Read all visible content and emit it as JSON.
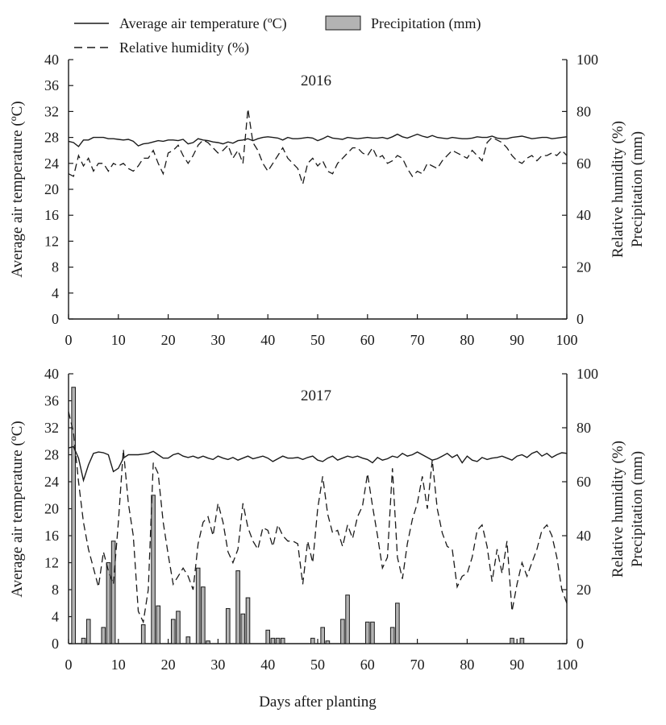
{
  "legend": {
    "temp_label": "Average air temperature (ºC)",
    "precip_label": "Precipitation (mm)",
    "rh_label": "Relative humidity  (%)"
  },
  "axes": {
    "xlabel": "Days after planting",
    "ylabel_left": "Average air temperature (ºC)",
    "ylabel_right_1": "Relative humidity (%)",
    "ylabel_right_2": "Precipitation (mm)"
  },
  "chart_data": [
    {
      "type": "line",
      "year_label": "2016",
      "xlim": [
        0,
        100
      ],
      "x_ticks": [
        0,
        10,
        20,
        30,
        40,
        50,
        60,
        70,
        80,
        90,
        100
      ],
      "ylim_left": [
        0,
        40
      ],
      "y_ticks_left": [
        0,
        4,
        8,
        12,
        16,
        20,
        24,
        28,
        32,
        36,
        40
      ],
      "ylim_right": [
        0,
        100
      ],
      "y_ticks_right": [
        0,
        20,
        40,
        60,
        80,
        100
      ],
      "series": [
        {
          "name": "Average air temperature (ºC)",
          "axis": "left",
          "x": [
            0,
            1,
            2,
            3,
            4,
            5,
            6,
            7,
            8,
            9,
            10,
            11,
            12,
            13,
            14,
            15,
            16,
            17,
            18,
            19,
            20,
            21,
            22,
            23,
            24,
            25,
            26,
            27,
            28,
            29,
            30,
            31,
            32,
            33,
            34,
            35,
            36,
            37,
            38,
            39,
            40,
            41,
            42,
            43,
            44,
            45,
            46,
            47,
            48,
            49,
            50,
            51,
            52,
            53,
            54,
            55,
            56,
            57,
            58,
            59,
            60,
            61,
            62,
            63,
            64,
            65,
            66,
            67,
            68,
            69,
            70,
            71,
            72,
            73,
            74,
            75,
            76,
            77,
            78,
            79,
            80,
            81,
            82,
            83,
            84,
            85,
            86,
            87,
            88,
            89,
            90,
            91,
            92,
            93,
            94,
            95,
            96,
            97,
            98,
            99,
            100
          ],
          "y": [
            27.4,
            27.2,
            26.6,
            27.6,
            27.6,
            28.0,
            28.0,
            28.0,
            27.8,
            27.8,
            27.7,
            27.6,
            27.7,
            27.4,
            26.7,
            27.0,
            27.1,
            27.3,
            27.5,
            27.4,
            27.6,
            27.6,
            27.5,
            27.7,
            27.0,
            27.2,
            27.8,
            27.6,
            27.5,
            27.3,
            27.2,
            27.0,
            27.3,
            27.1,
            27.5,
            27.6,
            27.8,
            27.5,
            27.8,
            28.0,
            28.1,
            28.0,
            27.9,
            27.6,
            28.0,
            27.8,
            27.8,
            27.9,
            28.0,
            27.9,
            27.5,
            27.8,
            28.2,
            27.9,
            27.8,
            27.7,
            28.0,
            27.9,
            27.8,
            27.9,
            28.0,
            27.9,
            27.9,
            28.0,
            27.8,
            28.1,
            28.5,
            28.1,
            27.9,
            28.2,
            28.5,
            28.2,
            28.0,
            28.3,
            28.0,
            27.9,
            27.8,
            28.0,
            27.9,
            27.8,
            27.8,
            27.9,
            28.1,
            28.0,
            28.0,
            28.2,
            27.9,
            27.8,
            27.8,
            28.0,
            28.1,
            28.2,
            28.0,
            27.8,
            27.9,
            28.0,
            28.0,
            27.8,
            27.9,
            28.0,
            28.1
          ]
        },
        {
          "name": "Relative humidity  (%)",
          "axis": "right",
          "x": [
            0,
            1,
            2,
            3,
            4,
            5,
            6,
            7,
            8,
            9,
            10,
            11,
            12,
            13,
            14,
            15,
            16,
            17,
            18,
            19,
            20,
            21,
            22,
            23,
            24,
            25,
            26,
            27,
            28,
            29,
            30,
            31,
            32,
            33,
            34,
            35,
            36,
            37,
            38,
            39,
            40,
            41,
            42,
            43,
            44,
            45,
            46,
            47,
            48,
            49,
            50,
            51,
            52,
            53,
            54,
            55,
            56,
            57,
            58,
            59,
            60,
            61,
            62,
            63,
            64,
            65,
            66,
            67,
            68,
            69,
            70,
            71,
            72,
            73,
            74,
            75,
            76,
            77,
            78,
            79,
            80,
            81,
            82,
            83,
            84,
            85,
            86,
            87,
            88,
            89,
            90,
            91,
            92,
            93,
            94,
            95,
            96,
            97,
            98,
            99,
            100
          ],
          "y": [
            56,
            55,
            63,
            59,
            62,
            57,
            60,
            60,
            57,
            60,
            59,
            60,
            58,
            57,
            59,
            62,
            62,
            65,
            60,
            56,
            64,
            65,
            67,
            63,
            60,
            63,
            67,
            69,
            68,
            66,
            64,
            65,
            67,
            62,
            65,
            60,
            81,
            68,
            65,
            60,
            57,
            60,
            63,
            66,
            62,
            60,
            58,
            52,
            60,
            62,
            59,
            61,
            57,
            56,
            60,
            62,
            64,
            66,
            66,
            64,
            63,
            66,
            62,
            63,
            60,
            61,
            63,
            62,
            58,
            55,
            57,
            56,
            60,
            59,
            58,
            61,
            63,
            65,
            64,
            63,
            62,
            65,
            63,
            61,
            68,
            70,
            69,
            68,
            66,
            63,
            61,
            60,
            62,
            63,
            61,
            63,
            63,
            64,
            63,
            65,
            63
          ]
        },
        {
          "name": "Precipitation (mm)",
          "type": "bar",
          "axis": "right",
          "x": [],
          "values": []
        }
      ]
    },
    {
      "type": "line",
      "year_label": "2017",
      "xlim": [
        0,
        100
      ],
      "x_ticks": [
        0,
        10,
        20,
        30,
        40,
        50,
        60,
        70,
        80,
        90,
        100
      ],
      "ylim_left": [
        0,
        40
      ],
      "y_ticks_left": [
        0,
        4,
        8,
        12,
        16,
        20,
        24,
        28,
        32,
        36,
        40
      ],
      "ylim_right": [
        0,
        100
      ],
      "y_ticks_right": [
        0,
        20,
        40,
        60,
        80,
        100
      ],
      "series": [
        {
          "name": "Average air temperature (ºC)",
          "axis": "left",
          "x": [
            0,
            1,
            2,
            3,
            4,
            5,
            6,
            7,
            8,
            9,
            10,
            11,
            12,
            13,
            14,
            15,
            16,
            17,
            18,
            19,
            20,
            21,
            22,
            23,
            24,
            25,
            26,
            27,
            28,
            29,
            30,
            31,
            32,
            33,
            34,
            35,
            36,
            37,
            38,
            39,
            40,
            41,
            42,
            43,
            44,
            45,
            46,
            47,
            48,
            49,
            50,
            51,
            52,
            53,
            54,
            55,
            56,
            57,
            58,
            59,
            60,
            61,
            62,
            63,
            64,
            65,
            66,
            67,
            68,
            69,
            70,
            71,
            72,
            73,
            74,
            75,
            76,
            77,
            78,
            79,
            80,
            81,
            82,
            83,
            84,
            85,
            86,
            87,
            88,
            89,
            90,
            91,
            92,
            93,
            94,
            95,
            96,
            97,
            98,
            99,
            100
          ],
          "y": [
            29,
            29.2,
            27.5,
            24.2,
            26.5,
            28.2,
            28.4,
            28.3,
            28.0,
            25.5,
            26.0,
            27.5,
            28.0,
            28.0,
            28.0,
            28.1,
            28.2,
            28.5,
            28.0,
            27.5,
            27.5,
            28.0,
            28.2,
            27.8,
            27.6,
            27.8,
            27.5,
            27.8,
            27.5,
            27.3,
            27.8,
            27.5,
            27.3,
            27.6,
            27.2,
            27.5,
            27.8,
            27.4,
            27.6,
            27.8,
            27.5,
            27.0,
            27.4,
            27.8,
            27.5,
            27.5,
            27.6,
            27.3,
            27.6,
            27.8,
            27.2,
            27.0,
            27.5,
            27.8,
            27.2,
            27.5,
            27.8,
            27.6,
            27.8,
            27.5,
            27.3,
            26.8,
            27.6,
            27.2,
            27.4,
            27.8,
            27.6,
            28.2,
            27.8,
            28.0,
            28.4,
            28.0,
            27.6,
            27.2,
            27.4,
            27.8,
            28.2,
            27.6,
            28.0,
            26.8,
            27.8,
            27.2,
            27.0,
            27.6,
            27.3,
            27.5,
            27.6,
            27.8,
            27.5,
            27.2,
            27.8,
            28.0,
            27.6,
            28.2,
            28.5,
            27.8,
            28.2,
            27.6,
            28.0,
            28.3,
            28.2
          ]
        },
        {
          "name": "Relative humidity  (%)",
          "axis": "right",
          "x": [
            0,
            1,
            2,
            3,
            4,
            5,
            6,
            7,
            8,
            9,
            10,
            11,
            12,
            13,
            14,
            15,
            16,
            17,
            18,
            19,
            20,
            21,
            22,
            23,
            24,
            25,
            26,
            27,
            28,
            29,
            30,
            31,
            32,
            33,
            34,
            35,
            36,
            37,
            38,
            39,
            40,
            41,
            42,
            43,
            44,
            45,
            46,
            47,
            48,
            49,
            50,
            51,
            52,
            53,
            54,
            55,
            56,
            57,
            58,
            59,
            60,
            61,
            62,
            63,
            64,
            65,
            66,
            67,
            68,
            69,
            70,
            71,
            72,
            73,
            74,
            75,
            76,
            77,
            78,
            79,
            80,
            81,
            82,
            83,
            84,
            85,
            86,
            87,
            88,
            89,
            90,
            91,
            92,
            93,
            94,
            95,
            96,
            97,
            98,
            99,
            100
          ],
          "y": [
            86,
            78,
            60,
            45,
            35,
            28,
            21,
            34,
            27,
            22,
            45,
            72,
            52,
            40,
            12,
            8,
            20,
            67,
            63,
            45,
            33,
            22,
            25,
            28,
            25,
            20,
            37,
            45,
            47,
            40,
            52,
            45,
            34,
            30,
            35,
            52,
            43,
            38,
            35,
            43,
            42,
            36,
            44,
            40,
            38,
            38,
            37,
            22,
            38,
            30,
            50,
            62,
            48,
            41,
            42,
            36,
            44,
            39,
            47,
            51,
            63,
            51,
            40,
            28,
            32,
            65,
            32,
            24,
            37,
            46,
            52,
            62,
            50,
            68,
            50,
            41,
            36,
            35,
            21,
            25,
            26,
            32,
            42,
            44,
            36,
            23,
            35,
            26,
            38,
            12,
            22,
            30,
            25,
            30,
            35,
            42,
            44,
            40,
            32,
            20,
            15
          ]
        },
        {
          "name": "Precipitation (mm)",
          "type": "bar",
          "axis": "right",
          "x": [
            1,
            3,
            4,
            7,
            8,
            9,
            15,
            17,
            18,
            21,
            22,
            24,
            26,
            27,
            28,
            32,
            34,
            35,
            36,
            40,
            41,
            42,
            43,
            49,
            51,
            52,
            55,
            56,
            60,
            61,
            65,
            66,
            89,
            91
          ],
          "values": [
            95,
            2,
            9,
            6,
            30,
            38,
            7,
            55,
            14,
            9,
            12,
            2.5,
            28,
            21,
            1,
            13,
            27,
            11,
            17,
            5,
            2,
            2,
            2,
            2,
            6,
            1,
            9,
            18,
            8,
            8,
            6,
            15,
            2,
            2
          ]
        }
      ]
    }
  ]
}
